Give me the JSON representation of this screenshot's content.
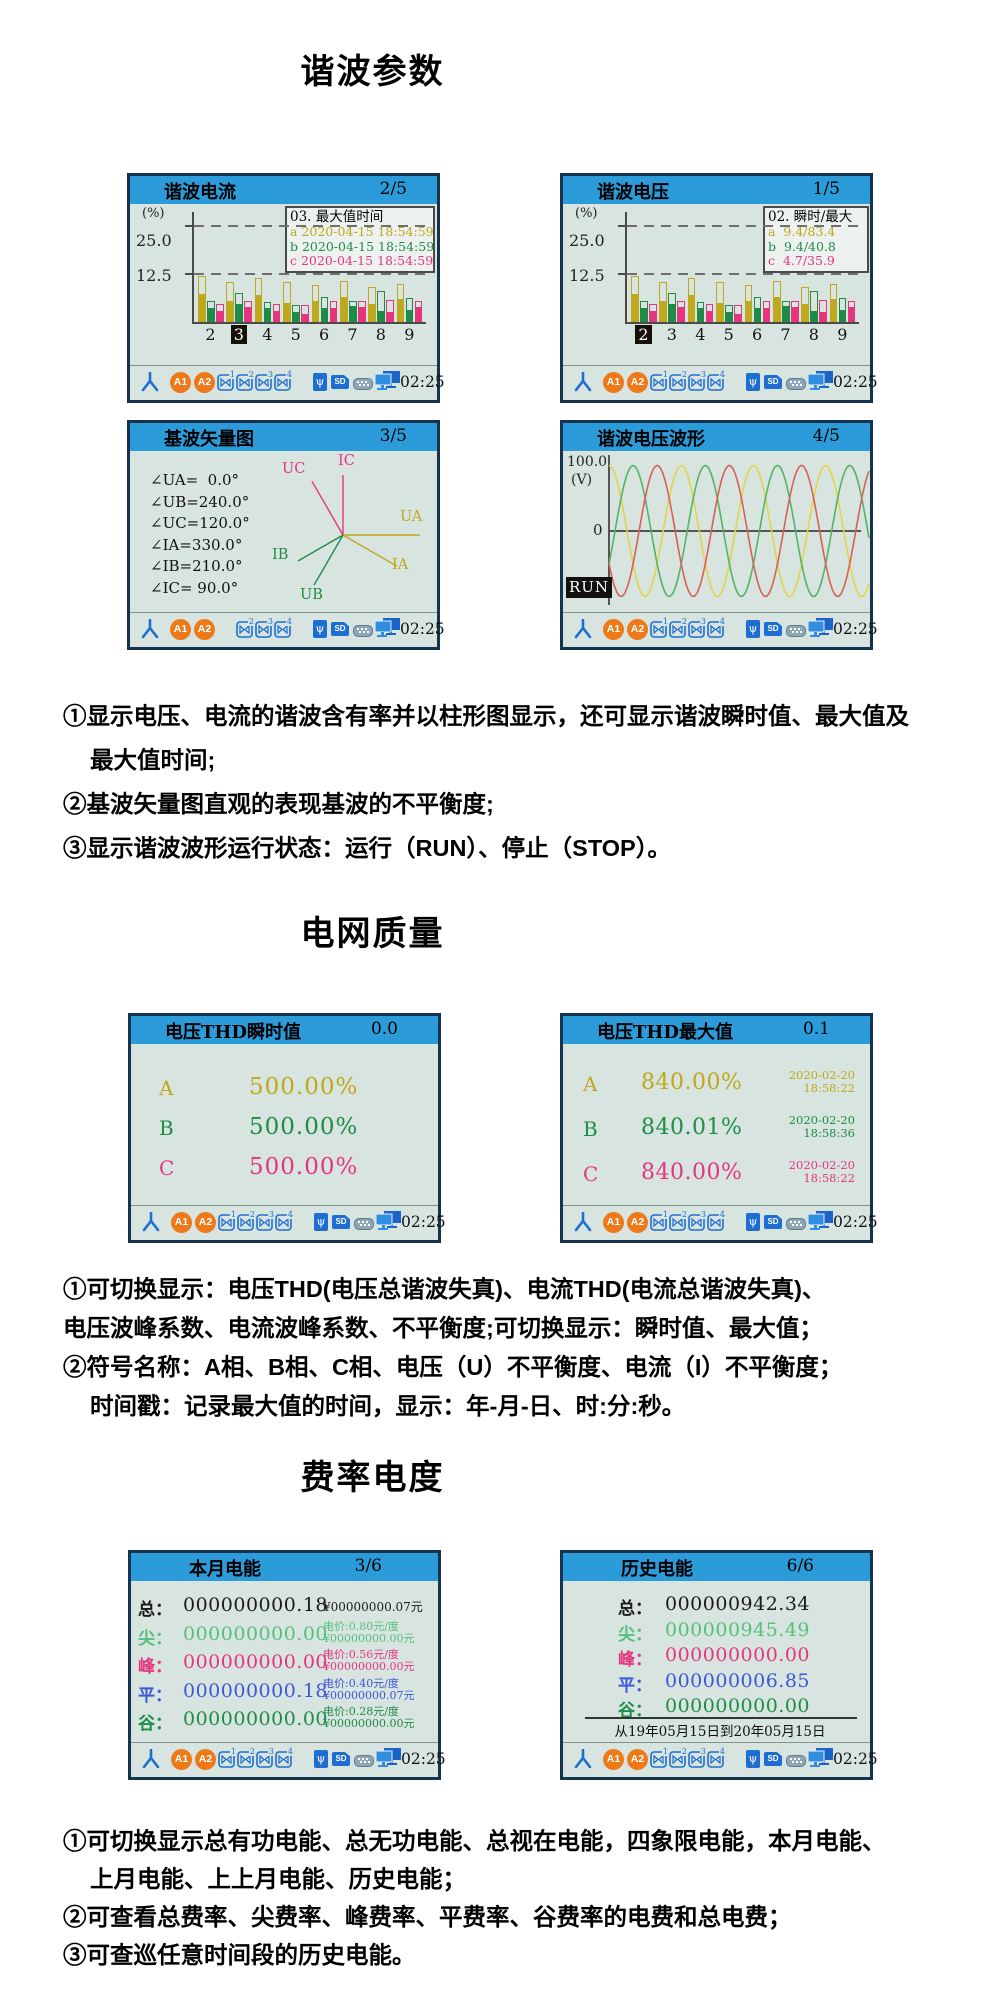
{
  "sections": {
    "harmonics": {
      "title": "谐波参数",
      "notes": [
        {
          "t": "①显示电压、电流的谐波含有率并以柱形图显示，还可显示谐波瞬时值、最大值及"
        },
        {
          "t": "最大值时间;"
        },
        {
          "t": "②基波矢量图直观的表现基波的不平衡度;"
        },
        {
          "t": "③显示谐波波形运行状态：运行（RUN）、停止（STOP）。"
        }
      ]
    },
    "grid_quality": {
      "title": "电网质量",
      "notes": [
        {
          "t": "①可切换显示：电压THD(电压总谐波失真)、电流THD(电流总谐波失真)、"
        },
        {
          "t": "电压波峰系数、电流波峰系数、不平衡度;可切换显示：瞬时值、最大值；"
        },
        {
          "t": "②符号名称：A相、B相、C相、电压（U）不平衡度、电流（I）不平衡度；"
        },
        {
          "t": "时间戳：记录最大值的时间，显示：年-月-日、时:分:秒。"
        }
      ]
    },
    "tariff_energy": {
      "title": "费率电度",
      "notes": [
        {
          "t": "①可切换显示总有功电能、总无功电能、总视在电能，四象限电能，本月电能、"
        },
        {
          "t": "上月电能、上上月电能、历史电能；"
        },
        {
          "t": "②可查看总费率、尖费率、峰费率、平费率、谷费率的电费和总电费；"
        },
        {
          "t": "③可查巡任意时间段的历史电能。"
        }
      ]
    }
  },
  "colors": {
    "titlebar": "#2b9cd9",
    "screen_bg": "#d8e4e0",
    "border": "#15334f",
    "icon_blue": "#1d6ed0",
    "icon_orange": "#ee7918",
    "a": "#bfa81e",
    "b": "#1e8c46",
    "c": "#e6357f",
    "tip_green": "#55c07c",
    "flat_blue": "#3c57d8",
    "valley_green": "#1e8c46"
  },
  "statusbar": {
    "a1": "A1",
    "a2": "A2",
    "usb_glyph": "ψ",
    "sd_label": "SD",
    "time": "02:25"
  },
  "screens": {
    "s1": {
      "title": "谐波电流",
      "page": "2/5",
      "chart": 0,
      "meters": [
        1,
        2,
        3,
        4
      ]
    },
    "s2": {
      "title": "谐波电压",
      "page": "1/5",
      "chart": 1,
      "meters": [
        1,
        2,
        3,
        4
      ]
    },
    "s3": {
      "title": "基波矢量图",
      "page": "3/5",
      "chart": 2,
      "meters": [
        2,
        3,
        4
      ]
    },
    "s4": {
      "title": "谐波电压波形",
      "page": "4/5",
      "chart": 3,
      "meters": [
        1,
        2,
        3,
        4
      ]
    },
    "s5": {
      "title": "电压THD瞬时值",
      "page": "0.0",
      "meters": [
        1,
        2,
        3,
        4
      ],
      "rows": [
        {
          "phase": "A",
          "value": "500.00%",
          "color": "#bfa81e"
        },
        {
          "phase": "B",
          "value": "500.00%",
          "color": "#1e8c46"
        },
        {
          "phase": "C",
          "value": "500.00%",
          "color": "#e6357f"
        }
      ]
    },
    "s6": {
      "title": "电压THD最大值",
      "page": "0.1",
      "meters": [
        1,
        2,
        3,
        4
      ],
      "rows": [
        {
          "phase": "A",
          "value": "840.00%",
          "date": "2020-02-20",
          "time": "18:58:22",
          "color": "#bfa81e"
        },
        {
          "phase": "B",
          "value": "840.01%",
          "date": "2020-02-20",
          "time": "18:58:36",
          "color": "#1e8c46"
        },
        {
          "phase": "C",
          "value": "840.00%",
          "date": "2020-02-20",
          "time": "18:58:22",
          "color": "#e6357f"
        }
      ]
    },
    "s7": {
      "title": "本月电能",
      "page": "3/6",
      "meters": [
        1,
        2,
        3,
        4
      ],
      "rows": [
        {
          "label": "总：",
          "value": "000000000.18",
          "price": "",
          "amount": "¥00000000.07元",
          "color": "#1a1a1a"
        },
        {
          "label": "尖：",
          "value": "000000000.00",
          "price": "电价:0.80元/度",
          "amount": "¥00000000.00元",
          "color": "#55c07c"
        },
        {
          "label": "峰：",
          "value": "000000000.00",
          "price": "电价:0.56元/度",
          "amount": "¥00000000.00元",
          "color": "#e6357f"
        },
        {
          "label": "平：",
          "value": "000000000.18",
          "price": "电价:0.40元/度",
          "amount": "¥00000000.07元",
          "color": "#3c57d8"
        },
        {
          "label": "谷：",
          "value": "000000000.00",
          "price": "电价:0.28元/度",
          "amount": "¥00000000.00元",
          "color": "#1e8c46"
        }
      ]
    },
    "s8": {
      "title": "历史电能",
      "page": "6/6",
      "meters": [
        1,
        2,
        3,
        4
      ],
      "range": "从19年05月15日到20年05月15日",
      "rows": [
        {
          "label": "总：",
          "value": "000000942.34",
          "color": "#1a1a1a"
        },
        {
          "label": "尖：",
          "value": "000000945.49",
          "color": "#55c07c"
        },
        {
          "label": "峰：",
          "value": "000000000.00",
          "color": "#e6357f"
        },
        {
          "label": "平：",
          "value": "000000006.85",
          "color": "#3c57d8"
        },
        {
          "label": "谷：",
          "value": "000000000.00",
          "color": "#1e8c46"
        }
      ]
    }
  },
  "chart_data": [
    {
      "type": "bar",
      "title": "谐波电流",
      "ylabel": "(%)",
      "yticks": [
        25.0,
        12.5
      ],
      "ylim": [
        0,
        31
      ],
      "categories": [
        "2",
        "3",
        "4",
        "5",
        "6",
        "7",
        "8",
        "9"
      ],
      "selected_category": "3",
      "series": [
        {
          "name": "a-max",
          "phase": "a",
          "values": [
            12.0,
            10.4,
            11.4,
            10.4,
            9.6,
            10.6,
            9.0,
            10.0
          ]
        },
        {
          "name": "a-inst",
          "phase": "a",
          "values": [
            7.2,
            5.6,
            7.0,
            5.0,
            5.6,
            6.4,
            4.6,
            6.0
          ]
        },
        {
          "name": "b-max",
          "phase": "b",
          "values": [
            5.4,
            7.6,
            5.2,
            4.4,
            6.4,
            5.4,
            8.2,
            6.2
          ]
        },
        {
          "name": "b-inst",
          "phase": "b",
          "values": [
            3.6,
            4.8,
            3.6,
            2.6,
            3.6,
            4.2,
            3.0,
            3.2
          ]
        },
        {
          "name": "c-max",
          "phase": "c",
          "values": [
            4.8,
            5.4,
            4.8,
            4.4,
            5.4,
            5.4,
            5.8,
            5.4
          ]
        },
        {
          "name": "c-inst",
          "phase": "c",
          "values": [
            3.0,
            4.0,
            3.0,
            2.2,
            3.6,
            4.0,
            2.6,
            4.0
          ]
        }
      ],
      "legend": {
        "title": "03. 最大值时间",
        "rows": [
          {
            "key": "a",
            "text": "2020-04-15 18:54:59"
          },
          {
            "key": "b",
            "text": "2020-04-15 18:54:59"
          },
          {
            "key": "c",
            "text": "2020-04-15 18:54:59"
          }
        ]
      }
    },
    {
      "type": "bar",
      "title": "谐波电压",
      "ylabel": "(%)",
      "yticks": [
        25.0,
        12.5
      ],
      "ylim": [
        0,
        31
      ],
      "categories": [
        "2",
        "3",
        "4",
        "5",
        "6",
        "7",
        "8",
        "9"
      ],
      "selected_category": "2",
      "series": [
        {
          "name": "a-max",
          "phase": "a",
          "values": [
            12.0,
            10.4,
            11.4,
            10.4,
            9.6,
            10.6,
            9.0,
            10.0
          ]
        },
        {
          "name": "a-inst",
          "phase": "a",
          "values": [
            7.2,
            5.6,
            7.0,
            5.0,
            5.6,
            6.4,
            4.6,
            6.0
          ]
        },
        {
          "name": "b-max",
          "phase": "b",
          "values": [
            5.4,
            7.6,
            5.2,
            4.4,
            6.4,
            5.4,
            8.2,
            6.2
          ]
        },
        {
          "name": "b-inst",
          "phase": "b",
          "values": [
            3.6,
            4.8,
            3.6,
            2.6,
            3.6,
            4.2,
            3.0,
            3.2
          ]
        },
        {
          "name": "c-max",
          "phase": "c",
          "values": [
            4.8,
            5.4,
            4.8,
            4.4,
            5.4,
            5.4,
            5.8,
            5.4
          ]
        },
        {
          "name": "c-inst",
          "phase": "c",
          "values": [
            3.0,
            4.0,
            3.0,
            2.2,
            3.6,
            4.0,
            2.6,
            4.0
          ]
        }
      ],
      "legend": {
        "title": "02. 瞬时/最大",
        "rows": [
          {
            "key": "a",
            "text": " 9.4/83.4"
          },
          {
            "key": "b",
            "text": " 9.4/40.8"
          },
          {
            "key": "c",
            "text": " 4.7/35.9"
          }
        ]
      }
    },
    {
      "type": "vector",
      "title": "基波矢量图",
      "angle_rows": [
        "∠UA=  0.0°",
        "∠UB=240.0°",
        "∠UC=120.0°",
        "∠IA=330.0°",
        "∠IB=210.0°",
        "∠IC= 90.0°"
      ],
      "vectors": [
        {
          "name": "UA",
          "deg": 0,
          "phase": "a"
        },
        {
          "name": "UB",
          "deg": 240,
          "phase": "b"
        },
        {
          "name": "UC",
          "deg": 120,
          "phase": "c"
        },
        {
          "name": "IA",
          "deg": 330,
          "phase": "a"
        },
        {
          "name": "IB",
          "deg": 210,
          "phase": "b"
        },
        {
          "name": "IC",
          "deg": 90,
          "phase": "c"
        }
      ]
    },
    {
      "type": "line",
      "title": "谐波电压波形",
      "y_top_label": "100.0",
      "y_unit": "(V)",
      "y_zero_label": "0",
      "run_label": "RUN",
      "ylim": [
        -100,
        100
      ],
      "amplitude": 95,
      "cycles": 3.6,
      "series": [
        {
          "name": "Ua",
          "color": "#e0d64a",
          "phase_deg": 90
        },
        {
          "name": "Ub",
          "color": "#52b468",
          "phase_deg": -30
        },
        {
          "name": "Uc",
          "color": "#d86058",
          "phase_deg": 210
        }
      ]
    }
  ]
}
